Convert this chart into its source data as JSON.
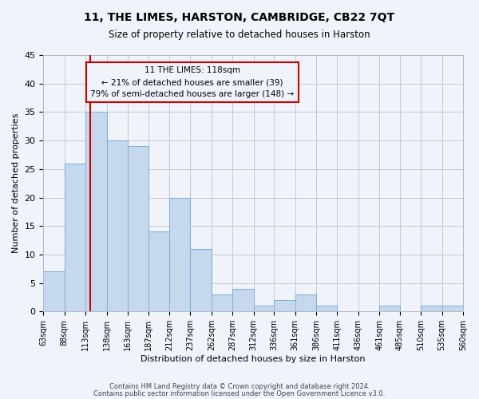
{
  "title": "11, THE LIMES, HARSTON, CAMBRIDGE, CB22 7QT",
  "subtitle": "Size of property relative to detached houses in Harston",
  "xlabel": "Distribution of detached houses by size in Harston",
  "ylabel": "Number of detached properties",
  "bar_color": "#c5d8ed",
  "bar_edgecolor": "#7aafd4",
  "grid_color": "#c0c8d8",
  "background_color": "#f0f4fa",
  "bin_edges": [
    63,
    88,
    113,
    138,
    163,
    187,
    212,
    237,
    262,
    287,
    312,
    336,
    361,
    386,
    411,
    436,
    461,
    485,
    510,
    535,
    560
  ],
  "bin_labels": [
    "63sqm",
    "88sqm",
    "113sqm",
    "138sqm",
    "163sqm",
    "187sqm",
    "212sqm",
    "237sqm",
    "262sqm",
    "287sqm",
    "312sqm",
    "336sqm",
    "361sqm",
    "386sqm",
    "411sqm",
    "436sqm",
    "461sqm",
    "485sqm",
    "510sqm",
    "535sqm",
    "560sqm"
  ],
  "counts": [
    7,
    26,
    35,
    30,
    29,
    14,
    20,
    11,
    3,
    4,
    1,
    2,
    3,
    1,
    0,
    0,
    1,
    0,
    1,
    1
  ],
  "ylim": [
    0,
    45
  ],
  "yticks": [
    0,
    5,
    10,
    15,
    20,
    25,
    30,
    35,
    40,
    45
  ],
  "property_value": 118,
  "vline_color": "#cc0000",
  "annotation_box_edgecolor": "#cc0000",
  "annotation_lines": [
    "11 THE LIMES: 118sqm",
    "← 21% of detached houses are smaller (39)",
    "79% of semi-detached houses are larger (148) →"
  ],
  "footer_lines": [
    "Contains HM Land Registry data © Crown copyright and database right 2024.",
    "Contains public sector information licensed under the Open Government Licence v3.0."
  ]
}
